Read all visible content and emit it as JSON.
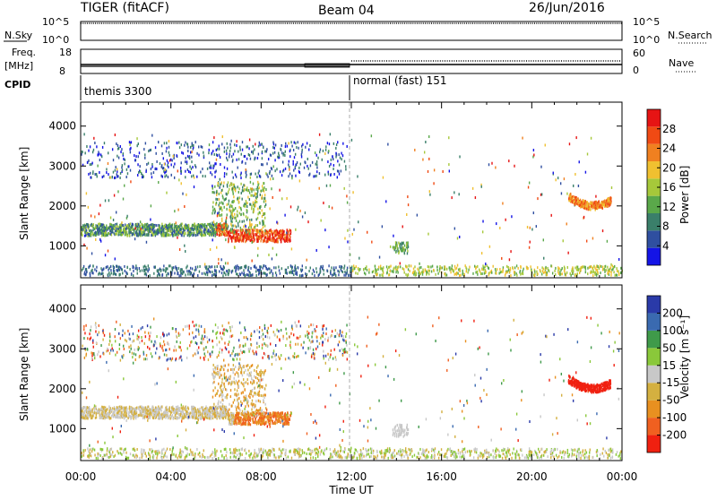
{
  "header": {
    "radar_title": "TIGER (fitACF)",
    "beam_title": "Beam 04",
    "date": "26/Jun/2016"
  },
  "top_panels": {
    "nsky_label": "N.Sky",
    "nsearch_label": "N.Search",
    "nsky_ticks": [
      "10^5",
      "10^0"
    ],
    "nsearch_ticks": [
      "10^5",
      "10^0"
    ],
    "freq_label_1": "Freq.",
    "freq_label_2": "[MHz]",
    "freq_ticks": [
      "18",
      "8"
    ],
    "nave_label": "Nave",
    "nave_ticks": [
      "60",
      "0"
    ],
    "cpid_label": "CPID",
    "cpid_segments": [
      "themis 3300",
      "normal (fast) 151"
    ]
  },
  "colors": {
    "power_scale": [
      "#1414e6",
      "#2f4fa0",
      "#3a7f6a",
      "#5aa84a",
      "#a6c83a",
      "#f0c030",
      "#f08020",
      "#f04a14",
      "#e61414"
    ],
    "velocity_scale": [
      "#2a3aa8",
      "#3a6ab0",
      "#3f9a4a",
      "#8ac83a",
      "#c8c8c8",
      "#d4b040",
      "#e89020",
      "#f06020",
      "#f02010"
    ]
  },
  "chart_data": [
    {
      "type": "heatmap",
      "title": "",
      "xlabel": "",
      "ylabel": "Slant Range [km]",
      "x_ticks": [
        "00:00",
        "04:00",
        "08:00",
        "12:00",
        "16:00",
        "20:00",
        "00:00"
      ],
      "y_ticks": [
        1000,
        2000,
        3000,
        4000
      ],
      "ylim": [
        200,
        4600
      ],
      "xlim_hours": [
        0,
        24
      ],
      "colorbar": {
        "label": "Power [dB]",
        "ticks": [
          4,
          8,
          12,
          16,
          20,
          24,
          28
        ],
        "range": [
          0,
          32
        ]
      }
    },
    {
      "type": "heatmap",
      "title": "",
      "xlabel": "Time UT",
      "ylabel": "Slant Range [km]",
      "x_ticks": [
        "00:00",
        "04:00",
        "08:00",
        "12:00",
        "16:00",
        "20:00",
        "00:00"
      ],
      "y_ticks": [
        1000,
        2000,
        3000,
        4000
      ],
      "ylim": [
        200,
        4600
      ],
      "xlim_hours": [
        0,
        24
      ],
      "colorbar": {
        "label": "Velocity [m s⁻¹]",
        "ticks": [
          200,
          100,
          50,
          15,
          -15,
          -50,
          -100,
          -200
        ]
      }
    }
  ]
}
